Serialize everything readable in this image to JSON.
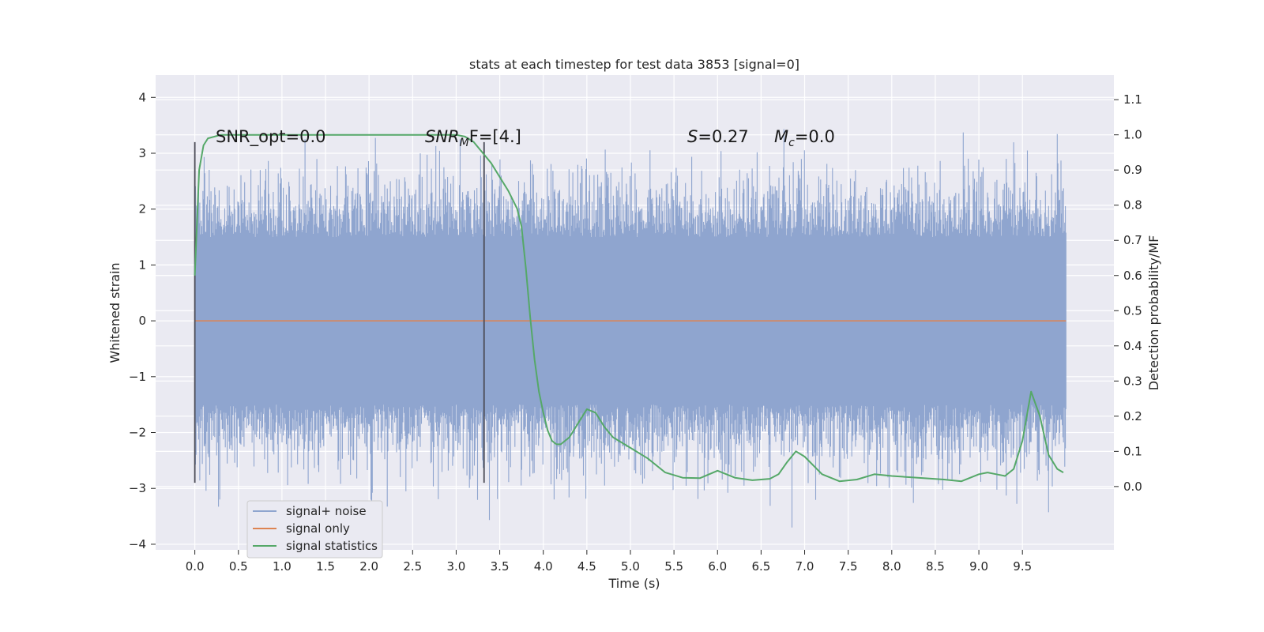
{
  "chart_data": {
    "type": "line",
    "title": "stats at each timestep for test data 3853 [signal=0]",
    "xlabel": "Time (s)",
    "ylabel": "Whitened strain",
    "y2label": "Detection probability/MF",
    "xlim": [
      -0.45,
      10.55
    ],
    "ylim": [
      -4.1,
      4.4
    ],
    "y2lim": [
      -0.18,
      1.17
    ],
    "xticks": [
      "0.0",
      "0.5",
      "1.0",
      "1.5",
      "2.0",
      "2.5",
      "3.0",
      "3.5",
      "4.0",
      "4.5",
      "5.0",
      "5.5",
      "6.0",
      "6.5",
      "7.0",
      "7.5",
      "8.0",
      "8.5",
      "9.0",
      "9.5"
    ],
    "yticks": [
      "−4",
      "−3",
      "−2",
      "−1",
      "0",
      "1",
      "2",
      "3",
      "4"
    ],
    "y2ticks": [
      "0.0",
      "0.1",
      "0.2",
      "0.3",
      "0.4",
      "0.5",
      "0.6",
      "0.7",
      "0.8",
      "0.9",
      "1.0",
      "1.1"
    ],
    "grid": true,
    "legend_position": "lower-left",
    "annotations": {
      "snr_opt": "SNR_opt=0.0",
      "snr_mf_base": "SNR",
      "snr_mf_sub": "M",
      "snr_mf_rest": "F=[4.]",
      "s_var": "S",
      "s_rest": "=0.27",
      "mc_var": "M",
      "mc_sub": "c",
      "mc_rest": "=0.0"
    },
    "vlines": [
      0.0,
      3.32
    ],
    "vline_range": [
      -2.9,
      3.2
    ],
    "series": [
      {
        "name": "signal+ noise",
        "color": "#8fa5cf",
        "description": "whitened strain noise, 0 to 10 s",
        "x_range": [
          0.0,
          10.0
        ],
        "envelope_max": [
          3.0,
          -3.7
        ]
      },
      {
        "name": "signal only",
        "color": "#dd8452",
        "x": [
          0.0,
          10.0
        ],
        "y": [
          0.0,
          0.0
        ]
      },
      {
        "name": "signal statistics",
        "color": "#55a868",
        "axis": "right",
        "x": [
          0.0,
          0.05,
          0.1,
          0.15,
          0.3,
          0.5,
          1.0,
          2.0,
          2.8,
          3.0,
          3.1,
          3.2,
          3.3,
          3.4,
          3.5,
          3.6,
          3.7,
          3.75,
          3.8,
          3.85,
          3.9,
          3.95,
          4.0,
          4.05,
          4.1,
          4.15,
          4.2,
          4.3,
          4.4,
          4.5,
          4.6,
          4.7,
          4.8,
          5.0,
          5.2,
          5.4,
          5.6,
          5.8,
          6.0,
          6.2,
          6.4,
          6.6,
          6.7,
          6.8,
          6.9,
          7.0,
          7.2,
          7.4,
          7.6,
          7.8,
          8.0,
          8.3,
          8.6,
          8.8,
          9.0,
          9.1,
          9.2,
          9.3,
          9.4,
          9.5,
          9.6,
          9.7,
          9.8,
          9.9,
          9.97
        ],
        "y": [
          0.6,
          0.9,
          0.97,
          0.99,
          1.0,
          1.0,
          1.0,
          1.0,
          1.0,
          1.0,
          0.995,
          0.98,
          0.95,
          0.92,
          0.88,
          0.84,
          0.79,
          0.74,
          0.62,
          0.48,
          0.36,
          0.27,
          0.21,
          0.16,
          0.13,
          0.12,
          0.12,
          0.14,
          0.18,
          0.22,
          0.21,
          0.17,
          0.14,
          0.11,
          0.08,
          0.04,
          0.025,
          0.024,
          0.045,
          0.025,
          0.018,
          0.022,
          0.035,
          0.07,
          0.1,
          0.085,
          0.035,
          0.015,
          0.02,
          0.035,
          0.03,
          0.025,
          0.02,
          0.015,
          0.035,
          0.04,
          0.035,
          0.03,
          0.05,
          0.13,
          0.27,
          0.2,
          0.09,
          0.05,
          0.04
        ]
      }
    ]
  },
  "legend": {
    "items": [
      {
        "label": "signal+ noise",
        "color": "#8fa5cf"
      },
      {
        "label": "signal only",
        "color": "#dd8452"
      },
      {
        "label": "signal statistics",
        "color": "#55a868"
      }
    ]
  },
  "colors": {
    "plot_background": "#eaeaf2",
    "grid": "#ffffff",
    "text": "#262626",
    "vline": "#4a4a55"
  }
}
